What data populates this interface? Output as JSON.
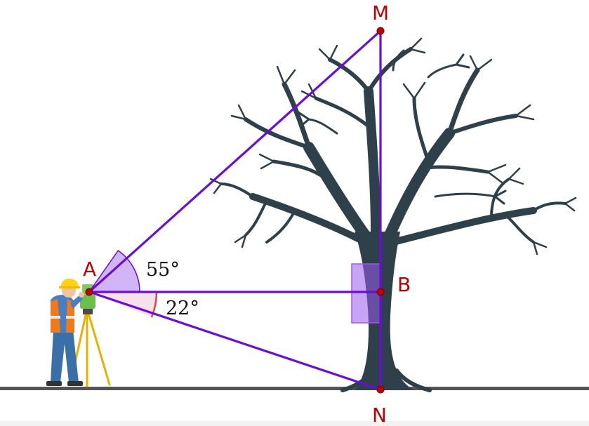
{
  "points": {
    "A": "A",
    "B": "B",
    "M": "M",
    "N": "N"
  },
  "angles": {
    "upper": "55°",
    "lower": "22°"
  },
  "colors": {
    "line": "#6a0dd6",
    "point": "#c00000",
    "angle_upper_fill": "#c9a8f5",
    "angle_lower_fill": "#f7dde6",
    "angle_lower_stroke": "#e04545",
    "right_angle_fill": "#9b59f0",
    "tree": "#2e4049",
    "ground": "#555555"
  },
  "icons": [
    "surveyor-icon",
    "theodolite-icon",
    "tree-icon"
  ]
}
